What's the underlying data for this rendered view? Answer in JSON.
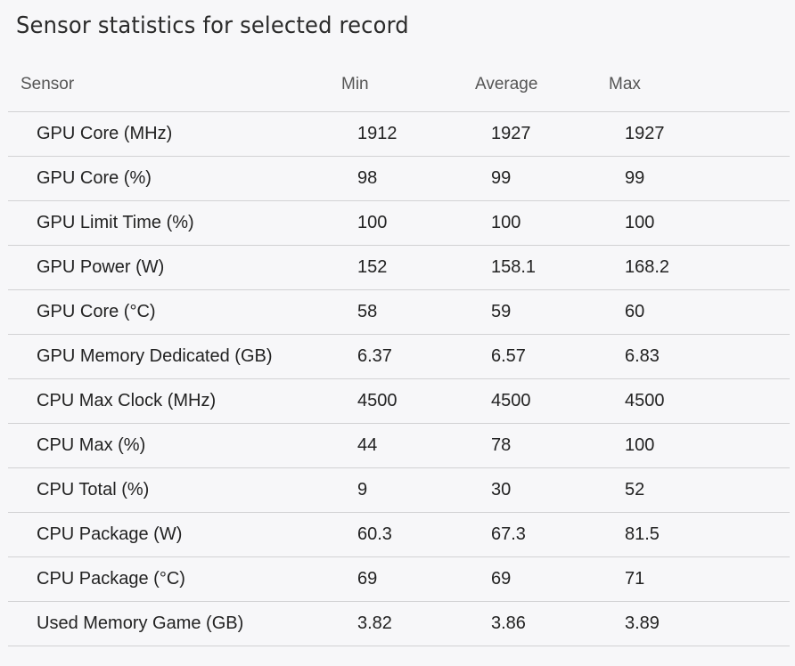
{
  "title": "Sensor statistics for selected record",
  "table": {
    "columns": [
      "Sensor",
      "Min",
      "Average",
      "Max"
    ],
    "rows": [
      {
        "sensor": "GPU Core (MHz)",
        "min": "1912",
        "avg": "1927",
        "max": "1927"
      },
      {
        "sensor": "GPU Core (%)",
        "min": "98",
        "avg": "99",
        "max": "99"
      },
      {
        "sensor": "GPU Limit Time (%)",
        "min": "100",
        "avg": "100",
        "max": "100"
      },
      {
        "sensor": "GPU Power (W)",
        "min": "152",
        "avg": "158.1",
        "max": "168.2"
      },
      {
        "sensor": "GPU Core (°C)",
        "min": "58",
        "avg": "59",
        "max": "60"
      },
      {
        "sensor": "GPU Memory Dedicated (GB)",
        "min": "6.37",
        "avg": "6.57",
        "max": "6.83"
      },
      {
        "sensor": "CPU Max Clock (MHz)",
        "min": "4500",
        "avg": "4500",
        "max": "4500"
      },
      {
        "sensor": "CPU Max (%)",
        "min": "44",
        "avg": "78",
        "max": "100"
      },
      {
        "sensor": "CPU Total (%)",
        "min": "9",
        "avg": "30",
        "max": "52"
      },
      {
        "sensor": "CPU Package (W)",
        "min": "60.3",
        "avg": "67.3",
        "max": "81.5"
      },
      {
        "sensor": "CPU Package (°C)",
        "min": "69",
        "avg": "69",
        "max": "71"
      },
      {
        "sensor": "Used Memory Game (GB)",
        "min": "3.82",
        "avg": "3.86",
        "max": "3.89"
      }
    ]
  }
}
